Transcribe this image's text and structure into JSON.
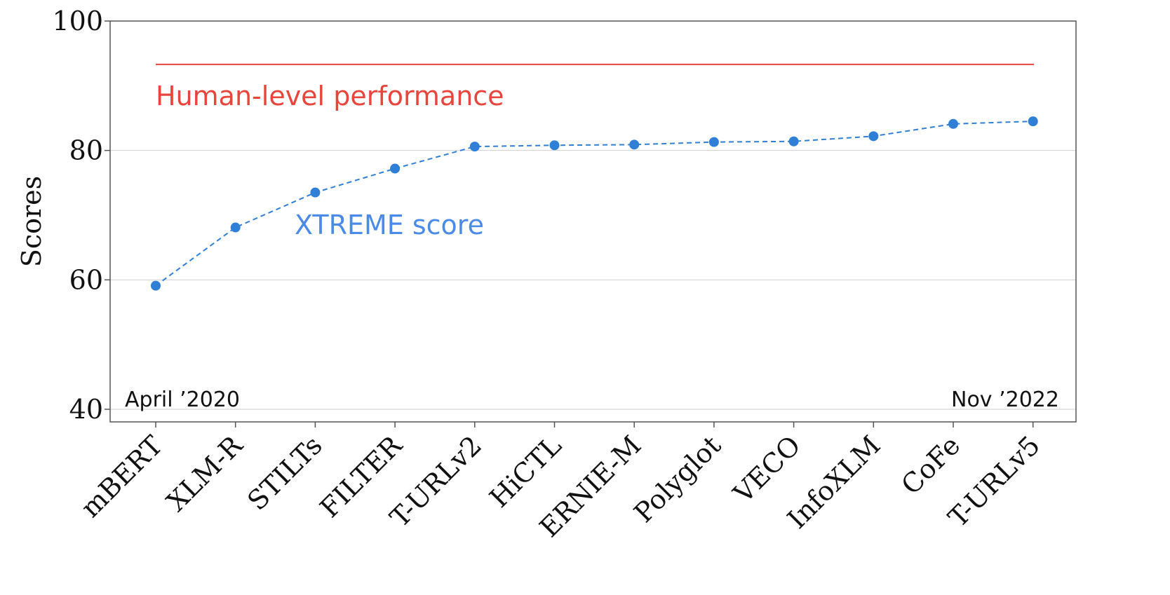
{
  "chart_data": {
    "type": "line",
    "ylabel": "Scores",
    "ylim": [
      40,
      100
    ],
    "yticks": [
      "40",
      "60",
      "80",
      "100"
    ],
    "categories": [
      "mBERT",
      "XLM-R",
      "STILTs",
      "FILTER",
      "T-URLv2",
      "HiCTL",
      "ERNIE-M",
      "Polyglot",
      "VECO",
      "InfoXLM",
      "CoFe",
      "T-URLv5"
    ],
    "grid": "horizontal",
    "series": [
      {
        "name": "XTREME score",
        "color": "#2f7fd6",
        "line_style": "dashed",
        "marker": "circle",
        "values": [
          59.1,
          68.1,
          73.5,
          77.2,
          80.6,
          80.8,
          80.9,
          81.3,
          81.4,
          82.2,
          84.1,
          84.5
        ]
      }
    ],
    "reference_line": {
      "label": "Human-level performance",
      "value": 93.3,
      "color": "#e8453c"
    },
    "annotations": {
      "start": "April ’2020",
      "end": "Nov ’2022"
    }
  }
}
